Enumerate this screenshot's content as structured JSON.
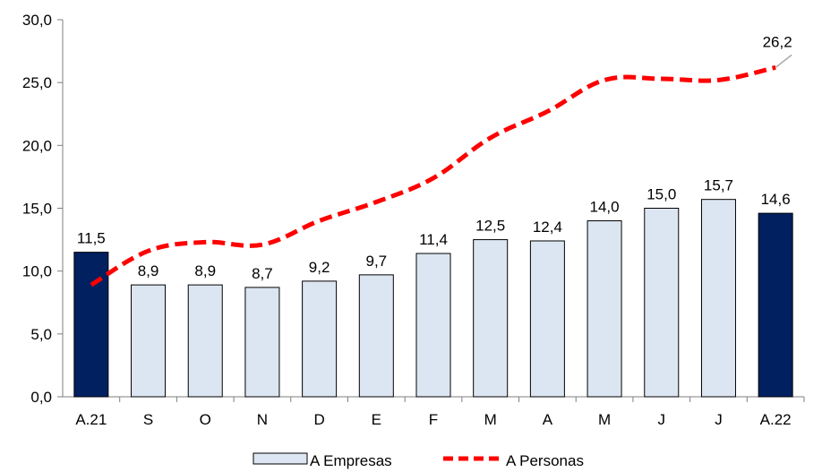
{
  "chart_data": {
    "type": "bar",
    "categories": [
      "A.21",
      "S",
      "O",
      "N",
      "D",
      "E",
      "F",
      "M",
      "A",
      "M",
      "J",
      "J",
      "A.22"
    ],
    "series": [
      {
        "name": "A Empresas",
        "type": "bar",
        "values": [
          11.5,
          8.9,
          8.9,
          8.7,
          9.2,
          9.7,
          11.4,
          12.5,
          12.4,
          14.0,
          15.0,
          15.7,
          14.6
        ],
        "labels": [
          "11,5",
          "8,9",
          "8,9",
          "8,7",
          "9,2",
          "9,7",
          "11,4",
          "12,5",
          "12,4",
          "14,0",
          "15,0",
          "15,7",
          "14,6"
        ],
        "highlight": [
          true,
          false,
          false,
          false,
          false,
          false,
          false,
          false,
          false,
          false,
          false,
          false,
          true
        ]
      },
      {
        "name": "A Personas",
        "type": "line",
        "values": [
          8.9,
          11.6,
          12.3,
          12.1,
          14.0,
          15.5,
          17.4,
          20.6,
          22.7,
          25.2,
          25.3,
          25.2,
          26.2
        ],
        "end_label": "26,2"
      }
    ],
    "ylim": [
      0,
      30
    ],
    "yticks": [
      0,
      5,
      10,
      15,
      20,
      25,
      30
    ],
    "ytick_labels": [
      "0,0",
      "5,0",
      "10,0",
      "15,0",
      "20,0",
      "25,0",
      "30,0"
    ],
    "grid": false,
    "legend_position": "bottom",
    "colors": {
      "bar_fill": "#dce6f2",
      "bar_highlight": "#002060",
      "bar_stroke": "#000000",
      "line": "#ff0000",
      "axis": "#7f7f7f"
    }
  }
}
